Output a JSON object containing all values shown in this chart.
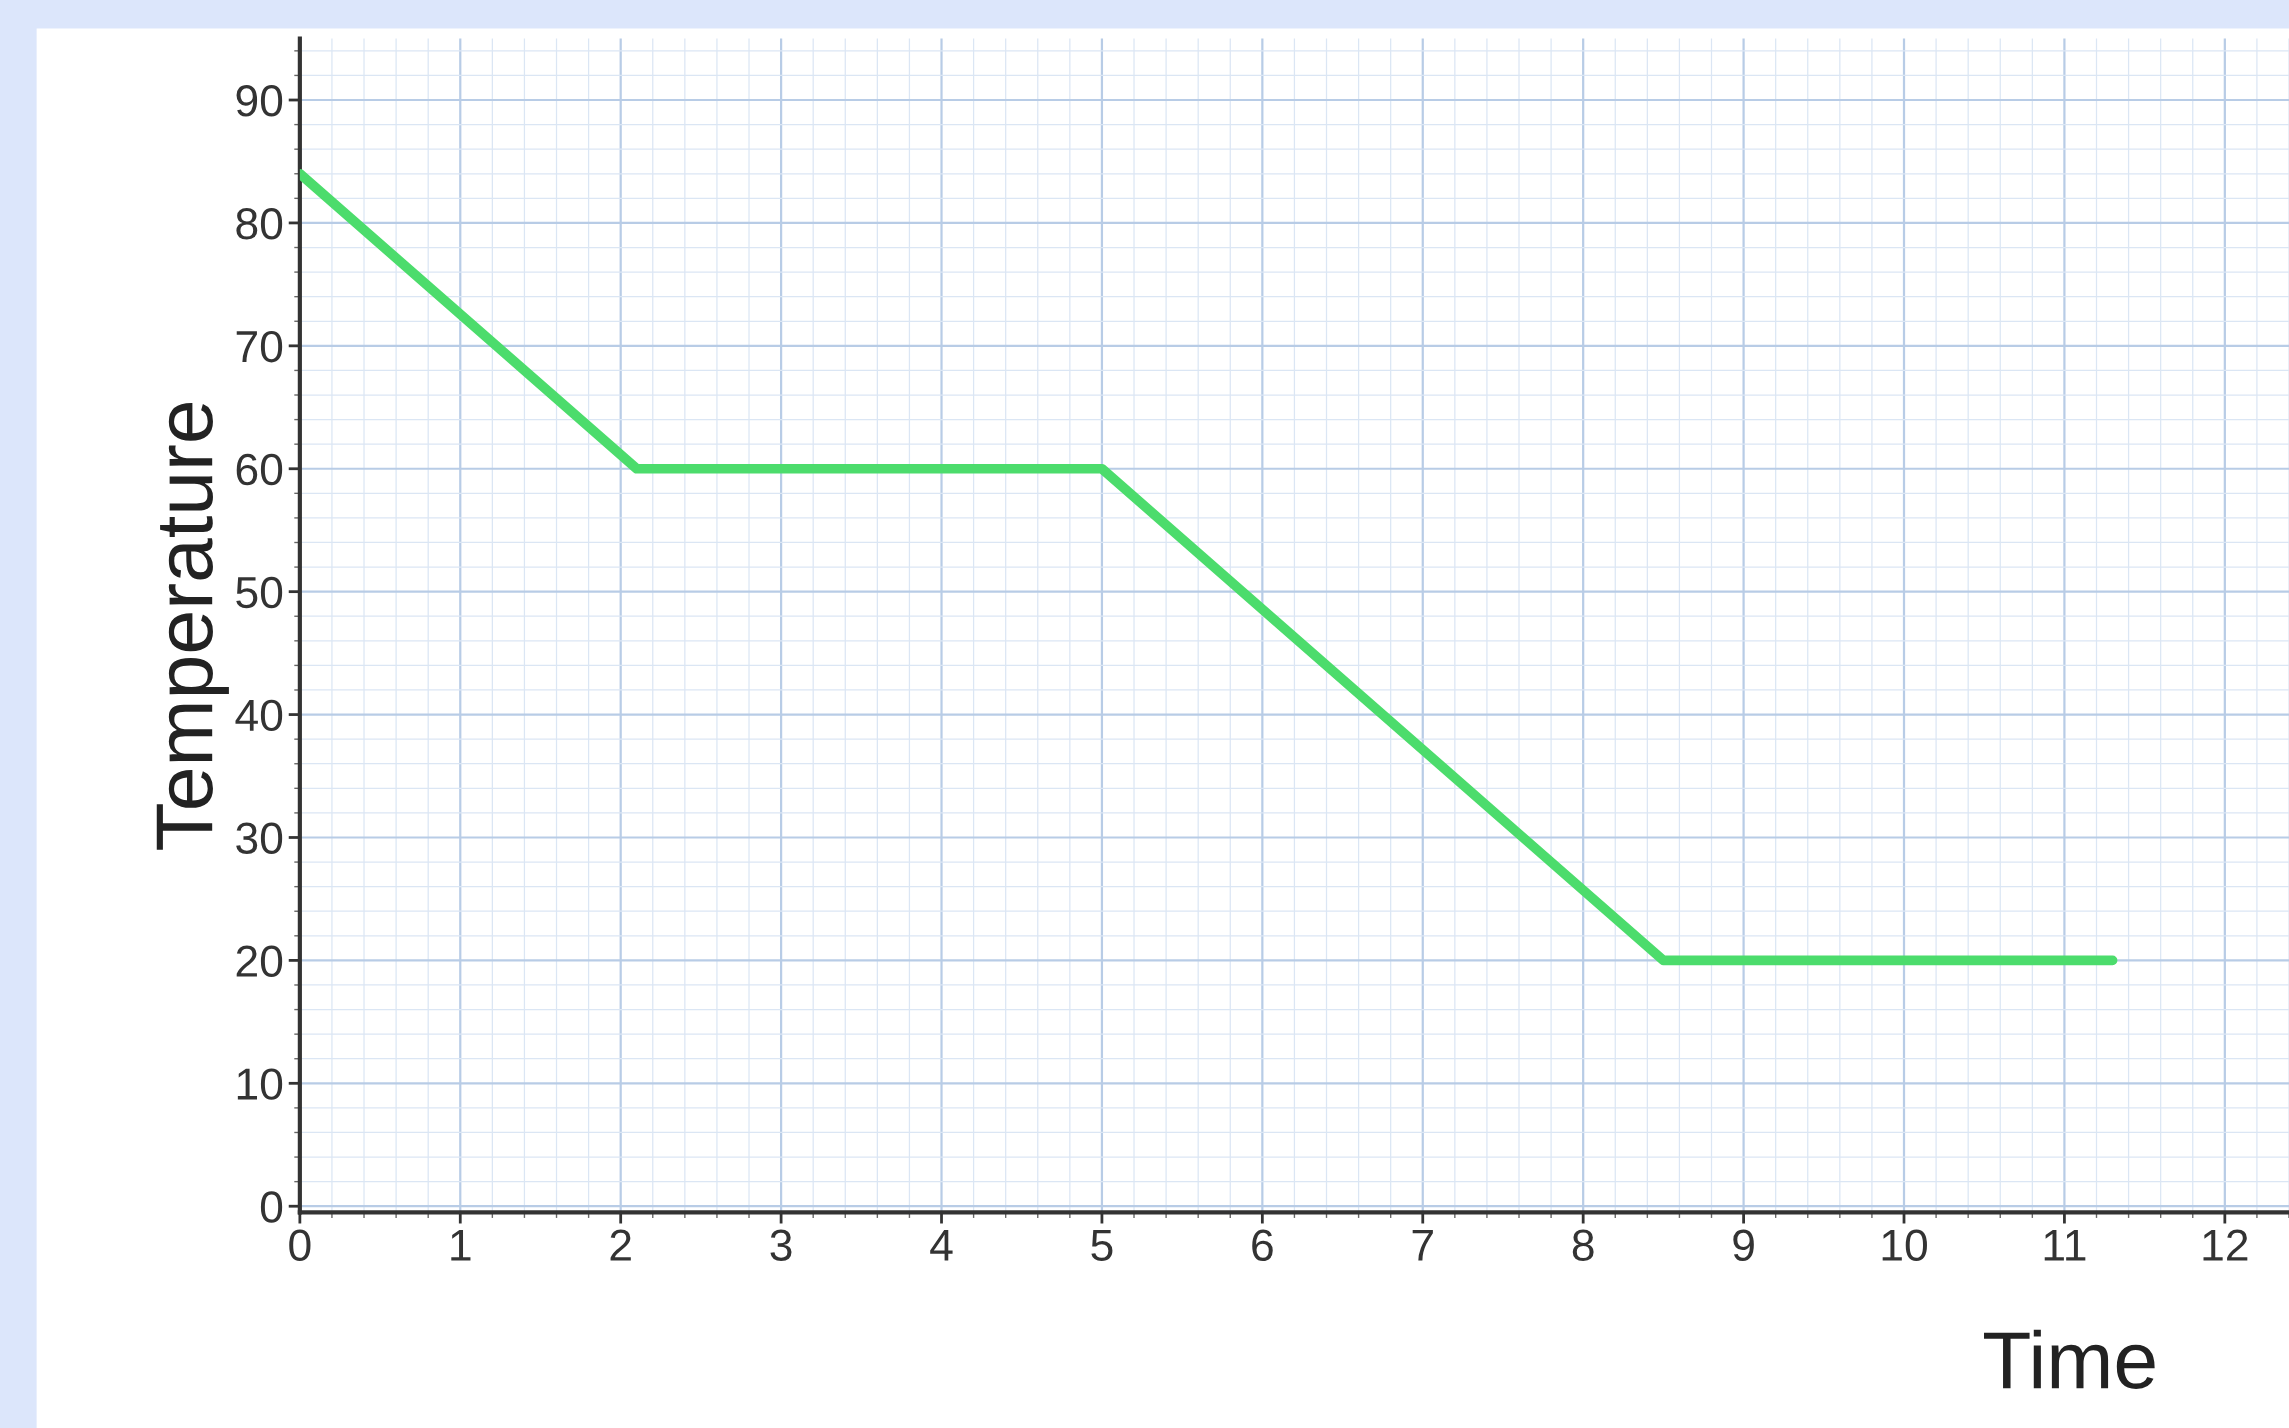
{
  "chart_data": {
    "type": "line",
    "xlabel": "Time",
    "ylabel": "Temperature",
    "x": [
      0,
      2.1,
      5,
      8.5,
      11.3
    ],
    "series": [
      {
        "color": "#4cdc6c",
        "values": [
          84,
          60,
          60,
          20,
          20
        ]
      }
    ],
    "xlim": [
      0,
      12.4
    ],
    "ylim": [
      -0.5,
      95
    ],
    "xticks": [
      0,
      1,
      2,
      3,
      4,
      5,
      6,
      7,
      8,
      9,
      10,
      11,
      12
    ],
    "yticks": [
      0,
      10,
      20,
      30,
      40,
      50,
      60,
      70,
      80,
      90
    ],
    "grid": true,
    "legend": false,
    "marker": "none",
    "line_style": "solid"
  }
}
